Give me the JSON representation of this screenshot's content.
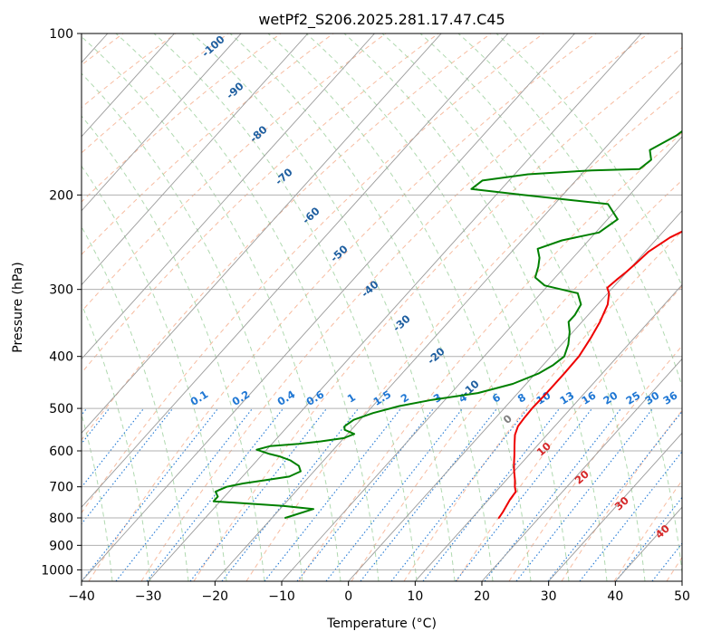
{
  "chart_data": {
    "type": "line",
    "subtype": "skew-t log-p",
    "title": "wetPf2_S206.2025.281.17.47.C45",
    "xlabel": "Temperature (°C)",
    "ylabel": "Pressure (hPa)",
    "xlim": [
      -40,
      50
    ],
    "ylim": [
      1050,
      100
    ],
    "y_scale": "log",
    "grid": true,
    "x_ticks": [
      "−40",
      "−30",
      "−20",
      "−10",
      "0",
      "10",
      "20",
      "30",
      "40",
      "50"
    ],
    "x_tick_values": [
      -40,
      -30,
      -20,
      -10,
      0,
      10,
      20,
      30,
      40,
      50
    ],
    "y_ticks": [
      "100",
      "200",
      "300",
      "400",
      "500",
      "600",
      "700",
      "800",
      "900",
      "1000"
    ],
    "y_tick_values": [
      100,
      200,
      300,
      400,
      500,
      600,
      700,
      800,
      900,
      1000
    ],
    "colors": {
      "temperature": "#ee0000",
      "dewpoint": "#008000",
      "grid": "#b0b0b0",
      "isotherm": "#9a9a9a",
      "dry_adiabat": "#f4a582",
      "moist_adiabat": "#8fc98f",
      "mixing_ratio": "#1f77d4",
      "isotherm_label": "#d62728",
      "moist_label": "#1f5fa0",
      "zero_label": "#808080"
    },
    "series": [
      {
        "name": "",
        "role": "temperature",
        "color": "#ee0000",
        "points": [
          [
            14.0,
            800
          ],
          [
            13.8,
            780
          ],
          [
            13.2,
            740
          ],
          [
            13.0,
            715
          ],
          [
            12.2,
            700
          ],
          [
            11.3,
            680
          ],
          [
            10.0,
            655
          ],
          [
            9.0,
            635
          ],
          [
            7.8,
            610
          ],
          [
            6.5,
            585
          ],
          [
            5.2,
            560
          ],
          [
            4.5,
            540
          ],
          [
            4.3,
            520
          ],
          [
            4.2,
            500
          ],
          [
            4.3,
            470
          ],
          [
            4.3,
            430
          ],
          [
            4.2,
            400
          ],
          [
            3.5,
            370
          ],
          [
            2.7,
            345
          ],
          [
            1.5,
            320
          ],
          [
            0.2,
            305
          ],
          [
            -0.8,
            298
          ],
          [
            -0.5,
            288
          ],
          [
            -0.1,
            278
          ],
          [
            0.2,
            268
          ],
          [
            0.5,
            255
          ],
          [
            1.8,
            240
          ],
          [
            4.4,
            225
          ],
          [
            8.4,
            210
          ],
          [
            10.3,
            200
          ],
          [
            11.5,
            190
          ],
          [
            11.9,
            175
          ],
          [
            11.7,
            162
          ],
          [
            11.7,
            150
          ],
          [
            12.6,
            140
          ],
          [
            13.4,
            130
          ],
          [
            14.2,
            122
          ],
          [
            14.9,
            115
          ],
          [
            14.9,
            108
          ],
          [
            14.8,
            100
          ]
        ]
      },
      {
        "name": "",
        "role": "dewpoint",
        "color": "#008000",
        "points": [
          [
            -18.0,
            800
          ],
          [
            -15.0,
            770
          ],
          [
            -20.0,
            760
          ],
          [
            -31.0,
            745
          ],
          [
            -31.0,
            730
          ],
          [
            -32.0,
            715
          ],
          [
            -31.0,
            700
          ],
          [
            -29.0,
            690
          ],
          [
            -26.0,
            680
          ],
          [
            -23.0,
            670
          ],
          [
            -22.0,
            655
          ],
          [
            -23.0,
            640
          ],
          [
            -25.0,
            625
          ],
          [
            -27.0,
            615
          ],
          [
            -29.0,
            608
          ],
          [
            -31.5,
            597
          ],
          [
            -30.0,
            588
          ],
          [
            -26.0,
            582
          ],
          [
            -23.0,
            576
          ],
          [
            -20.0,
            568
          ],
          [
            -19.0,
            558
          ],
          [
            -21.0,
            548
          ],
          [
            -21.5,
            540
          ],
          [
            -21.0,
            525
          ],
          [
            -19.0,
            510
          ],
          [
            -16.0,
            495
          ],
          [
            -12.0,
            482
          ],
          [
            -6.0,
            468
          ],
          [
            -2.0,
            450
          ],
          [
            0.5,
            430
          ],
          [
            1.5,
            415
          ],
          [
            2.0,
            400
          ],
          [
            1.0,
            380
          ],
          [
            -0.5,
            360
          ],
          [
            -2.0,
            345
          ],
          [
            -2.0,
            335
          ],
          [
            -2.5,
            320
          ],
          [
            -4.5,
            305
          ],
          [
            -10.5,
            295
          ],
          [
            -13.0,
            285
          ],
          [
            -14.0,
            272
          ],
          [
            -15.0,
            262
          ],
          [
            -16.5,
            252
          ],
          [
            -14.0,
            243
          ],
          [
            -9.5,
            235
          ],
          [
            -8.5,
            222
          ],
          [
            -12.0,
            208
          ],
          [
            -26.0,
            200
          ],
          [
            -34.5,
            195
          ],
          [
            -34.0,
            188
          ],
          [
            -28.0,
            183
          ],
          [
            -19.0,
            180
          ],
          [
            -12.0,
            179
          ],
          [
            -11.5,
            172
          ],
          [
            -13.0,
            165
          ],
          [
            -11.0,
            155
          ],
          [
            -10.0,
            145
          ],
          [
            -9.0,
            135
          ],
          [
            -8.0,
            125
          ],
          [
            -7.0,
            117
          ],
          [
            -5.5,
            110
          ],
          [
            -4.0,
            105
          ],
          [
            -3.0,
            100
          ]
        ]
      }
    ],
    "isotherm_labels": [
      "0",
      "10",
      "20",
      "30",
      "40"
    ],
    "isotherm_label_values": [
      0,
      10,
      20,
      30,
      40
    ],
    "moist_adiabat_labels": [
      "-100",
      "-90",
      "-80",
      "-70",
      "-60",
      "-50",
      "-40",
      "-30",
      "-20",
      "-10"
    ],
    "mixing_ratio_labels": [
      "0.1",
      "0.2",
      "0.4",
      "0.6",
      "1",
      "1.5",
      "2",
      "3",
      "4",
      "6",
      "8",
      "10",
      "13",
      "16",
      "20",
      "25",
      "30",
      "36"
    ]
  }
}
